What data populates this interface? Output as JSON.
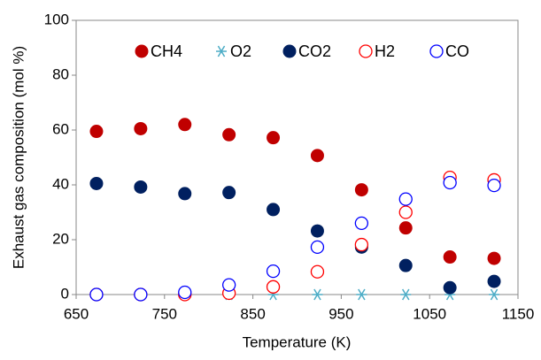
{
  "chart_data": {
    "type": "scatter",
    "x_label": "Temperature (K)",
    "y_label": "Exhaust gas composition (mol %)",
    "x": [
      673,
      723,
      773,
      823,
      873,
      923,
      973,
      1023,
      1073,
      1123
    ],
    "series": [
      {
        "name": "CH4",
        "color": "#c00000",
        "marker": "filled",
        "values": [
          59.5,
          60.5,
          62,
          58.3,
          57.2,
          50.7,
          38.2,
          24.3,
          13.7,
          13.2
        ]
      },
      {
        "name": "O2",
        "color": "#4bacc6",
        "marker": "asterisk",
        "values": [
          0,
          0,
          0,
          0,
          0,
          0,
          0,
          0,
          0,
          0
        ]
      },
      {
        "name": "CO2",
        "color": "#002060",
        "marker": "filled",
        "values": [
          40.5,
          39.2,
          36.8,
          37.2,
          31,
          23.2,
          17.3,
          10.6,
          2.5,
          4.8
        ]
      },
      {
        "name": "H2",
        "color": "#ff0000",
        "marker": "open",
        "values": [
          0,
          0,
          0,
          0.5,
          2.8,
          8.3,
          18.2,
          30,
          42.7,
          41.8
        ]
      },
      {
        "name": "CO",
        "color": "#0000ff",
        "marker": "open",
        "values": [
          0,
          0,
          0.8,
          3.5,
          8.5,
          17.3,
          26,
          34.8,
          40.8,
          39.8
        ]
      }
    ],
    "xlim": [
      650,
      1150
    ],
    "xticks": [
      650,
      750,
      850,
      950,
      1050,
      1150
    ],
    "ylim": [
      0,
      100
    ],
    "yticks": [
      0,
      20,
      40,
      60,
      80,
      100
    ],
    "grid": false,
    "legend": "top"
  }
}
